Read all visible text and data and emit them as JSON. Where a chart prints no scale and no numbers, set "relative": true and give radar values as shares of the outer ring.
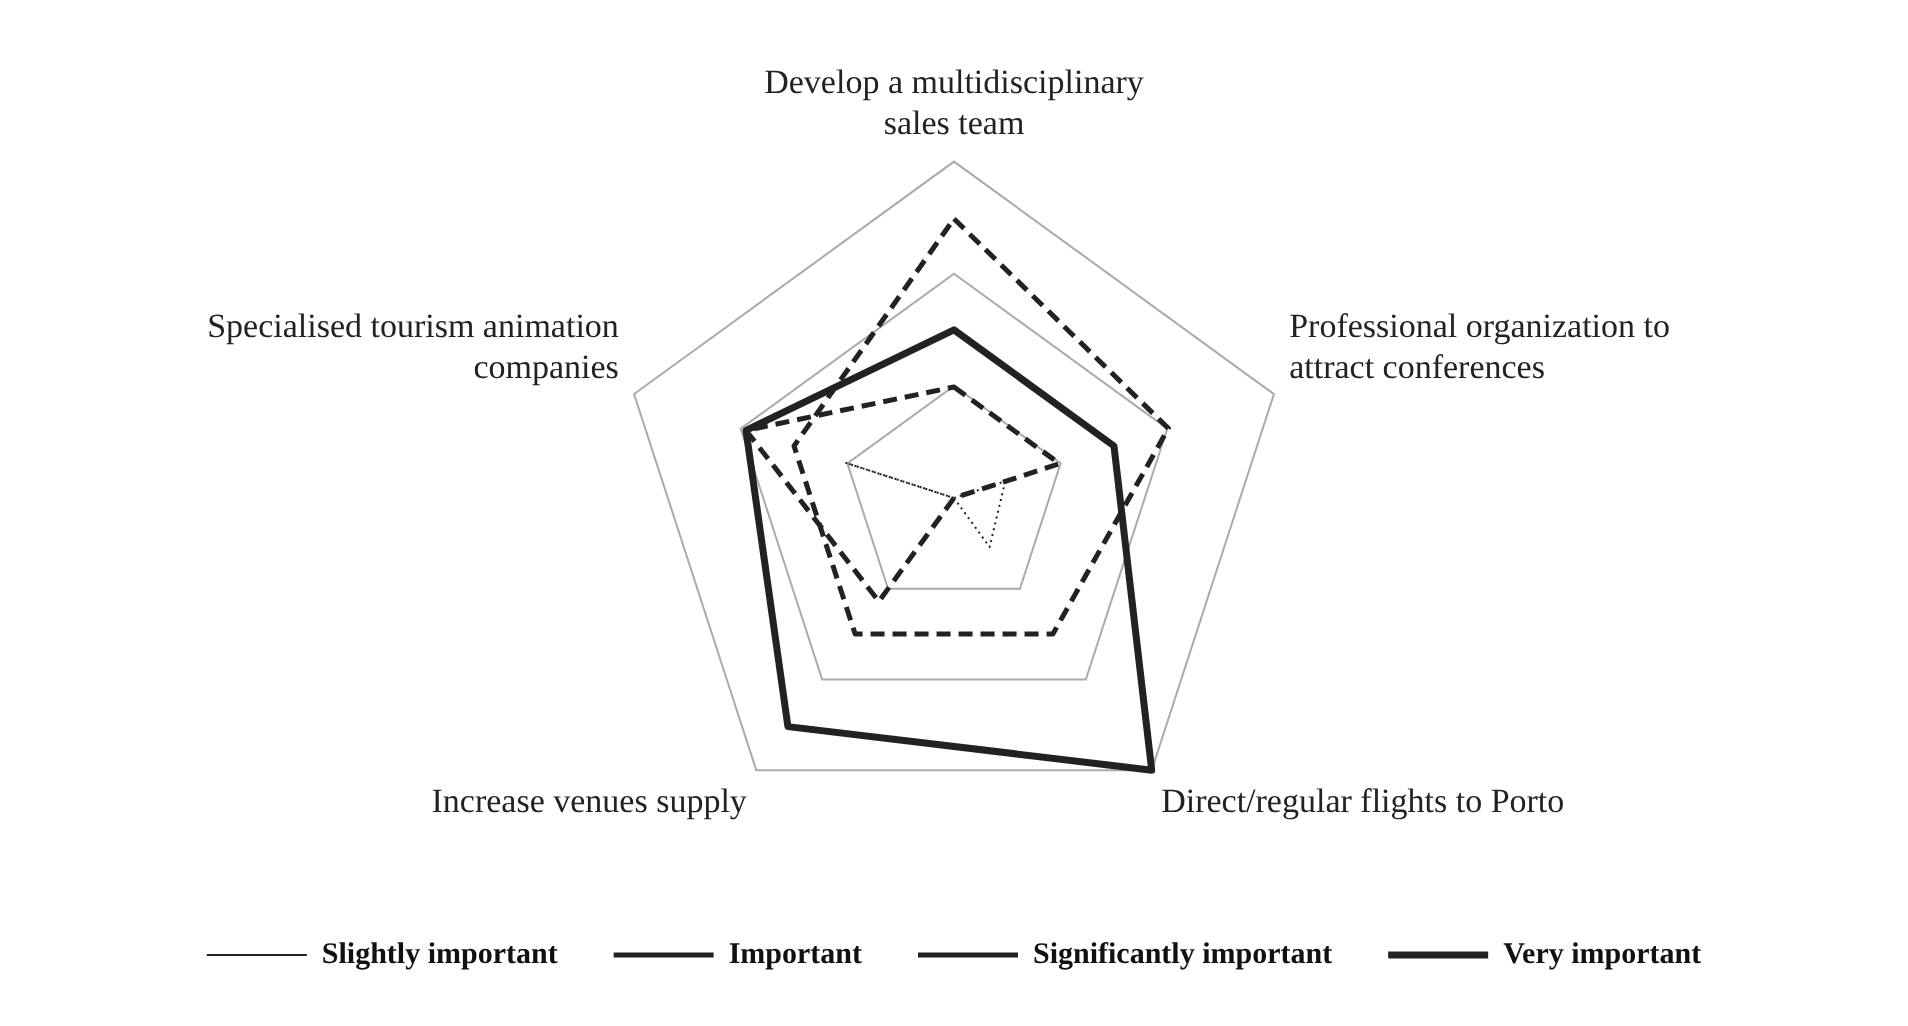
{
  "chart_data": {
    "type": "radar",
    "relative": true,
    "legend": "bottom",
    "categories": [
      "Develop a multidisciplinary sales team",
      "Professional organization to attract conferences",
      "Direct/regular flights to Porto",
      "Increase venues supply",
      "Specialised tourism animation companies"
    ],
    "series": [
      {
        "name": "Slightly important",
        "color": "#222222",
        "line_style": "dotted",
        "values": [
          0,
          0.16,
          0.18,
          0,
          0.34
        ]
      },
      {
        "name": "Important",
        "color": "#222222",
        "line_style": "dashed",
        "values": [
          0.33,
          0.33,
          0,
          0.38,
          0.65
        ]
      },
      {
        "name": "Significantly important",
        "color": "#222222",
        "line_style": "dashed",
        "values": [
          0.83,
          0.67,
          0.5,
          0.5,
          0.5
        ]
      },
      {
        "name": "Very important",
        "color": "#222222",
        "line_style": "solid",
        "values": [
          0.5,
          0.5,
          1,
          0.84,
          0.65
        ]
      }
    ]
  }
}
